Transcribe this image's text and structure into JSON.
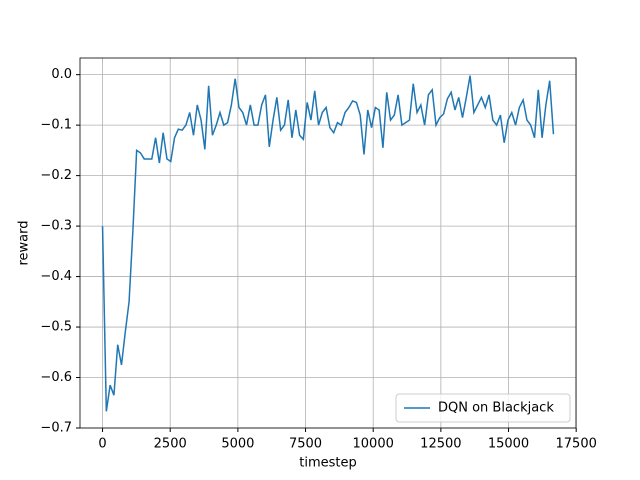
{
  "chart_data": {
    "type": "line",
    "xlabel": "timestep",
    "ylabel": "reward",
    "x": [
      0,
      140,
      280,
      420,
      560,
      700,
      840,
      980,
      1120,
      1260,
      1400,
      1540,
      1680,
      1820,
      1960,
      2100,
      2240,
      2380,
      2520,
      2660,
      2800,
      2940,
      3080,
      3220,
      3360,
      3500,
      3640,
      3780,
      3920,
      4060,
      4200,
      4340,
      4480,
      4620,
      4760,
      4900,
      5040,
      5180,
      5320,
      5460,
      5600,
      5740,
      5880,
      6020,
      6160,
      6300,
      6440,
      6580,
      6720,
      6860,
      7000,
      7140,
      7280,
      7420,
      7560,
      7700,
      7840,
      7980,
      8120,
      8260,
      8400,
      8540,
      8680,
      8820,
      8960,
      9100,
      9240,
      9380,
      9520,
      9660,
      9800,
      9940,
      10080,
      10220,
      10360,
      10500,
      10640,
      10780,
      10920,
      11060,
      11200,
      11340,
      11480,
      11620,
      11760,
      11900,
      12040,
      12180,
      12320,
      12460,
      12600,
      12740,
      12880,
      13020,
      13160,
      13300,
      13440,
      13580,
      13720,
      13860,
      14000,
      14140,
      14280,
      14420,
      14560,
      14700,
      14840,
      14980,
      15120,
      15260,
      15400,
      15540,
      15680,
      15820,
      15960,
      16100,
      16240,
      16380,
      16520,
      16660
    ],
    "series": [
      {
        "name": "DQN on Blackjack",
        "color": "#1f77b4",
        "values": [
          -0.3,
          -0.667,
          -0.615,
          -0.635,
          -0.535,
          -0.575,
          -0.51,
          -0.45,
          -0.31,
          -0.15,
          -0.155,
          -0.167,
          -0.167,
          -0.167,
          -0.125,
          -0.175,
          -0.115,
          -0.167,
          -0.172,
          -0.125,
          -0.108,
          -0.11,
          -0.1,
          -0.075,
          -0.12,
          -0.06,
          -0.09,
          -0.148,
          -0.022,
          -0.12,
          -0.1,
          -0.075,
          -0.1,
          -0.095,
          -0.06,
          -0.008,
          -0.065,
          -0.075,
          -0.1,
          -0.06,
          -0.1,
          -0.1,
          -0.06,
          -0.04,
          -0.143,
          -0.09,
          -0.045,
          -0.11,
          -0.1,
          -0.05,
          -0.125,
          -0.07,
          -0.12,
          -0.128,
          -0.055,
          -0.09,
          -0.032,
          -0.1,
          -0.075,
          -0.065,
          -0.105,
          -0.115,
          -0.095,
          -0.1,
          -0.075,
          -0.065,
          -0.052,
          -0.055,
          -0.08,
          -0.158,
          -0.07,
          -0.105,
          -0.065,
          -0.07,
          -0.145,
          -0.035,
          -0.09,
          -0.08,
          -0.04,
          -0.1,
          -0.095,
          -0.09,
          -0.018,
          -0.075,
          -0.06,
          -0.1,
          -0.04,
          -0.03,
          -0.1,
          -0.085,
          -0.078,
          -0.048,
          -0.035,
          -0.07,
          -0.045,
          -0.085,
          -0.045,
          -0.002,
          -0.075,
          -0.06,
          -0.045,
          -0.065,
          -0.04,
          -0.09,
          -0.1,
          -0.08,
          -0.135,
          -0.09,
          -0.075,
          -0.1,
          -0.065,
          -0.05,
          -0.09,
          -0.1,
          -0.125,
          -0.03,
          -0.125,
          -0.06,
          -0.012,
          -0.118
        ]
      }
    ],
    "xlim": [
      -833,
      17493
    ],
    "xticks": [
      0,
      2500,
      5000,
      7500,
      10000,
      12500,
      15000,
      17500
    ],
    "ylim": [
      -0.7,
      0.033
    ],
    "yticks": [
      {
        "value": -0.7,
        "label": "−0.7"
      },
      {
        "value": -0.6,
        "label": "−0.6"
      },
      {
        "value": -0.5,
        "label": "−0.5"
      },
      {
        "value": -0.4,
        "label": "−0.4"
      },
      {
        "value": -0.3,
        "label": "−0.3"
      },
      {
        "value": -0.2,
        "label": "−0.2"
      },
      {
        "value": -0.1,
        "label": "−0.1"
      },
      {
        "value": 0,
        "label": "0.0"
      }
    ],
    "grid": true,
    "legend": "lower right"
  }
}
